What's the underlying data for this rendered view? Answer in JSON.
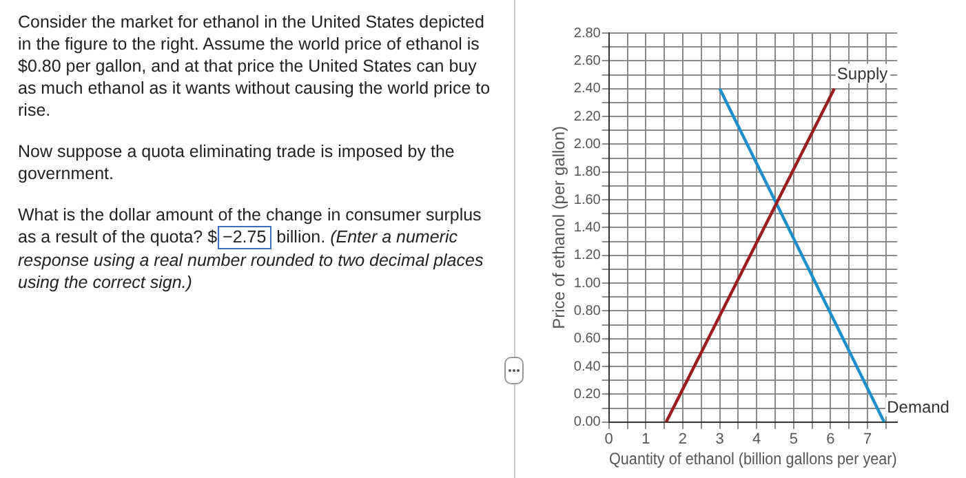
{
  "chart_data": [
    {
      "type": "other",
      "annotations": [
        "Consider the market for ethanol in the United States depicted in the figure to the right.  Assume the world price of ethanol is $0.80 per gallon, and at that price the United States can buy as much ethanol as it wants without causing the world price to rise.",
        "Now suppose a quota eliminating trade is imposed by the government.",
        "What is the dollar amount of the change in consumer surplus as a result of the quota?",
        "$",
        "−2.75",
        "billion.",
        "(Enter a numeric response using a real number rounded to two decimal places using the correct sign.)"
      ]
    },
    {
      "type": "line",
      "xlabel": "Quantity of ethanol (billion gallons per year)",
      "ylabel": "Price of ethanol (per gallon)",
      "xlim": [
        0,
        7.8
      ],
      "ylim": [
        0,
        2.8
      ],
      "xticks": [
        0,
        {
          "value": 0.5,
          "label": null
        },
        1,
        {
          "value": 1.5,
          "label": null
        },
        2,
        {
          "value": 2.5,
          "label": null
        },
        3,
        {
          "value": 3.5,
          "label": null
        },
        4,
        {
          "value": 4.5,
          "label": null
        },
        5,
        {
          "value": 5.5,
          "label": null
        },
        6,
        {
          "value": 6.5,
          "label": null
        },
        7,
        {
          "value": 7.5,
          "label": null
        }
      ],
      "yticks": [
        {
          "value": 0,
          "label": "0.00"
        },
        {
          "value": 0.1,
          "label": null
        },
        {
          "value": 0.2,
          "label": "0.20"
        },
        {
          "value": 0.3,
          "label": null
        },
        {
          "value": 0.4,
          "label": "0.40"
        },
        {
          "value": 0.5,
          "label": null
        },
        {
          "value": 0.6,
          "label": "0.60"
        },
        {
          "value": 0.7,
          "label": null
        },
        {
          "value": 0.8,
          "label": "0.80"
        },
        {
          "value": 0.9,
          "label": null
        },
        {
          "value": 1.0,
          "label": "1.00"
        },
        {
          "value": 1.1,
          "label": null
        },
        {
          "value": 1.2,
          "label": "1.20"
        },
        {
          "value": 1.3,
          "label": null
        },
        {
          "value": 1.4,
          "label": "1.40"
        },
        {
          "value": 1.5,
          "label": null
        },
        {
          "value": 1.6,
          "label": "1.60"
        },
        {
          "value": 1.7,
          "label": null
        },
        {
          "value": 1.8,
          "label": "1.80"
        },
        {
          "value": 1.9,
          "label": null
        },
        {
          "value": 2.0,
          "label": "2.00"
        },
        {
          "value": 2.1,
          "label": null
        },
        {
          "value": 2.2,
          "label": "2.20"
        },
        {
          "value": 2.3,
          "label": null
        },
        {
          "value": 2.4,
          "label": "2.40"
        },
        {
          "value": 2.5,
          "label": null
        },
        {
          "value": 2.6,
          "label": "2.60"
        },
        {
          "value": 2.7,
          "label": null
        },
        {
          "value": 2.8,
          "label": "2.80"
        }
      ],
      "grid": true,
      "legend": false,
      "marker": "none",
      "line_style": "solid",
      "series": [
        {
          "name": "Supply",
          "color": "#9b1c1c",
          "x": [
            1.55,
            6.1
          ],
          "values": [
            0,
            2.4
          ]
        },
        {
          "name": "Demand",
          "color": "#1f8fcc",
          "x": [
            3,
            7.45
          ],
          "values": [
            2.4,
            0
          ]
        }
      ]
    }
  ]
}
